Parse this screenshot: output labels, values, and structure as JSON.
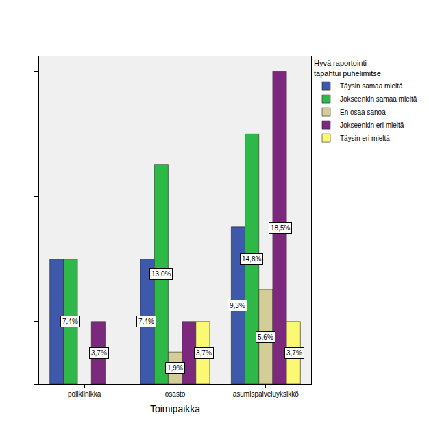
{
  "chart_data": {
    "type": "bar",
    "x_label": "Toimipaikka",
    "legend_title": "Hyvä raportointi\ntapahtui puhelimitse",
    "categories": [
      "poliklinikka",
      "osasto",
      "asumispalveluyksikkö"
    ],
    "series": [
      {
        "name": "Täysin samaa mieltä",
        "color": "#3E58AC",
        "values": [
          7.4,
          7.4,
          9.3
        ],
        "value_labels": [
          null,
          "7,4%",
          "9,3%"
        ]
      },
      {
        "name": "Jokseenkin samaa mieltä",
        "color": "#2EB848",
        "values": [
          7.4,
          13.0,
          14.8
        ],
        "value_labels": [
          "7,4%",
          "13,0%",
          "14,8%"
        ]
      },
      {
        "name": "En osaa sanoa",
        "color": "#D3CE97",
        "values": [
          null,
          1.9,
          5.6
        ],
        "value_labels": [
          null,
          "1,9%",
          "5,6%"
        ]
      },
      {
        "name": "Jokseenkin eri mieltä",
        "color": "#7C287D",
        "values": [
          3.7,
          3.7,
          18.5
        ],
        "value_labels": [
          "3,7%",
          null,
          "18,5%"
        ]
      },
      {
        "name": "Täysin eri mieltä",
        "color": "#FBF873",
        "values": [
          null,
          3.7,
          3.7
        ],
        "value_labels": [
          null,
          "3,7%",
          "3,7%"
        ]
      }
    ],
    "ylim": [
      0,
      19.4
    ],
    "yticks": [
      0,
      3.7,
      7.4,
      11.1,
      14.8,
      18.5
    ],
    "tick_labels": "x",
    "grid": false,
    "data_labels": true,
    "legend": "right"
  }
}
